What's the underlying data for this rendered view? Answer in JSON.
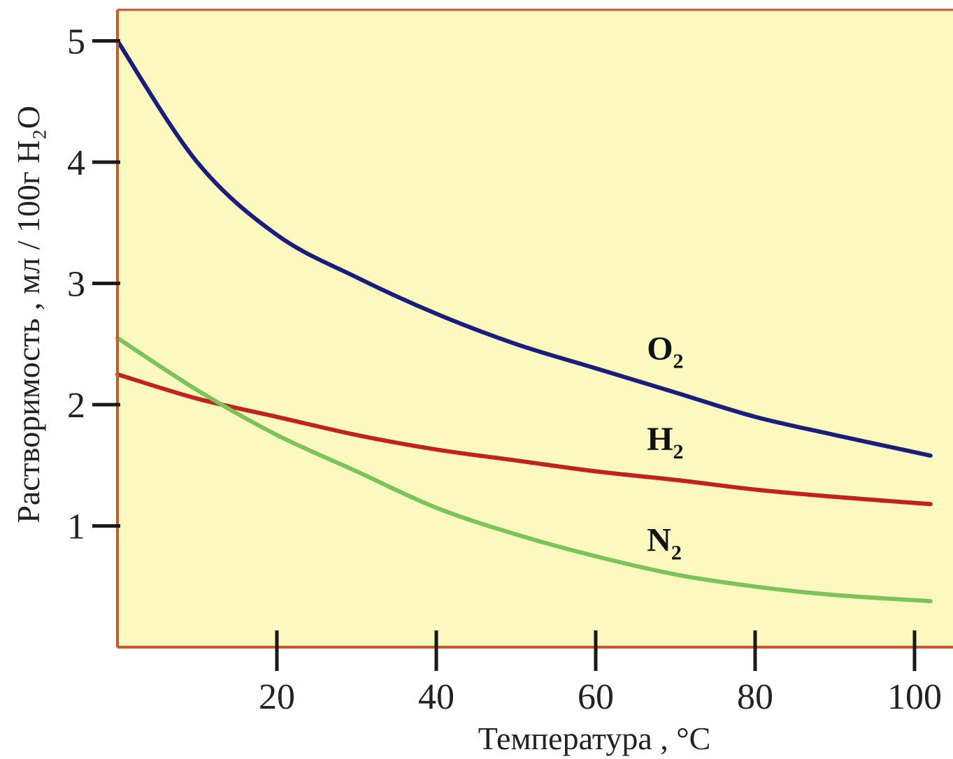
{
  "chart_data": {
    "type": "line",
    "xlabel": "Температура , °С",
    "ylabel": "Растворимость , мл / 100г H₂O",
    "xlim": [
      0,
      103
    ],
    "ylim": [
      0,
      5.2
    ],
    "x_ticks": [
      20,
      40,
      60,
      80,
      100
    ],
    "y_ticks": [
      1,
      2,
      3,
      4,
      5
    ],
    "grid": false,
    "legend": "inline labels",
    "colors": {
      "plot_background": "#fbf8c0",
      "axis": "#c8562f",
      "tick_marks": "#1a1a1a"
    },
    "series": [
      {
        "name": "O₂",
        "label_main": "O",
        "label_sub": "2",
        "color": "#1a1d7a",
        "x": [
          0,
          10,
          20,
          30,
          40,
          50,
          60,
          70,
          80,
          90,
          102
        ],
        "y": [
          5.0,
          4.0,
          3.4,
          3.05,
          2.75,
          2.5,
          2.3,
          2.1,
          1.9,
          1.75,
          1.58
        ]
      },
      {
        "name": "H₂",
        "label_main": "H",
        "label_sub": "2",
        "color": "#c2221c",
        "x": [
          0,
          10,
          20,
          30,
          40,
          50,
          60,
          70,
          80,
          90,
          102
        ],
        "y": [
          2.25,
          2.05,
          1.9,
          1.75,
          1.63,
          1.54,
          1.45,
          1.38,
          1.3,
          1.24,
          1.18
        ]
      },
      {
        "name": "N₂",
        "label_main": "N",
        "label_sub": "2",
        "color": "#7cc35a",
        "x": [
          0,
          10,
          20,
          30,
          40,
          50,
          60,
          70,
          80,
          90,
          102
        ],
        "y": [
          2.55,
          2.12,
          1.75,
          1.45,
          1.15,
          0.93,
          0.75,
          0.6,
          0.5,
          0.43,
          0.38
        ]
      }
    ]
  }
}
